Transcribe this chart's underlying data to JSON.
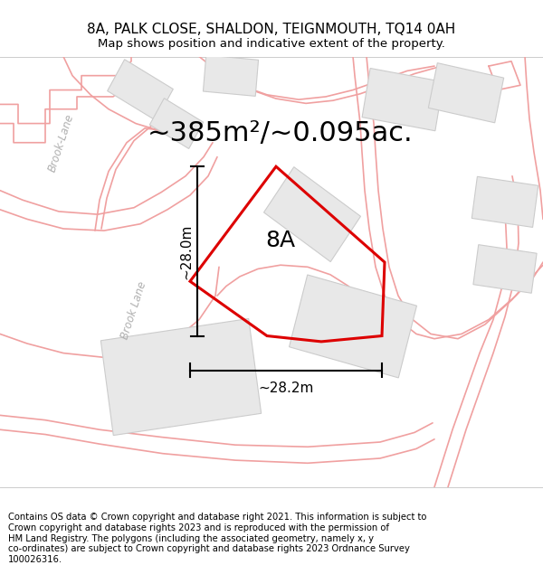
{
  "title": "8A, PALK CLOSE, SHALDON, TEIGNMOUTH, TQ14 0AH",
  "subtitle": "Map shows position and indicative extent of the property.",
  "area_text": "~385m²/~0.095ac.",
  "label_8A": "8A",
  "dim_vertical": "~28.0m",
  "dim_horizontal": "~28.2m",
  "footer": "Contains OS data © Crown copyright and database right 2021. This information is subject to Crown copyright and database rights 2023 and is reproduced with the permission of HM Land Registry. The polygons (including the associated geometry, namely x, y co-ordinates) are subject to Crown copyright and database rights 2023 Ordnance Survey 100026316.",
  "background_color": "#ffffff",
  "map_bg": "#ffffff",
  "road_color": "#f0a0a0",
  "plot_outline_color": "#dd0000",
  "title_fontsize": 11,
  "subtitle_fontsize": 9.5,
  "area_fontsize": 22,
  "label_fontsize": 18,
  "dim_fontsize": 11,
  "footer_fontsize": 7.2,
  "street_label_color": "#b0b0b0",
  "street_label_fontsize": 8.5
}
